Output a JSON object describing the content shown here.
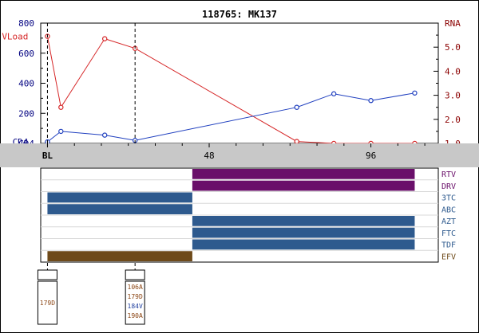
{
  "chart_data": {
    "type": "line",
    "title": "118765: MK137",
    "x_axis": {
      "range": [
        -2,
        116
      ],
      "tick_labels": [
        {
          "x": 0,
          "label": "BL"
        },
        {
          "x": 48,
          "label": "48"
        },
        {
          "x": 96,
          "label": "96"
        }
      ],
      "markers": [
        0,
        26
      ]
    },
    "left_axis": {
      "label": "CD4",
      "range": [
        0,
        800
      ],
      "ticks": [
        0,
        200,
        400,
        600,
        800
      ],
      "tick_labels": [
        "CD4",
        "200",
        "400",
        "600",
        "800"
      ],
      "color": "#000080"
    },
    "right_axis": {
      "label": "RNA",
      "range": [
        1.0,
        6.0
      ],
      "ticks": [
        1.0,
        2.0,
        3.0,
        4.0,
        5.0,
        6.0
      ],
      "tick_labels": [
        "1.0",
        "2.0",
        "3.0",
        "4.0",
        "5.0",
        "RNA"
      ],
      "color": "#8b0000"
    },
    "series": [
      {
        "name": "VLoad",
        "axis": "right",
        "color": "#d62728",
        "x": [
          0,
          4,
          17,
          26,
          74,
          85,
          96,
          109
        ],
        "y": [
          5.45,
          2.5,
          5.35,
          4.95,
          1.08,
          1.0,
          1.0,
          1.0
        ]
      },
      {
        "name": "CD4",
        "axis": "left",
        "color": "#1f3fbf",
        "x": [
          0,
          4,
          17,
          26,
          74,
          85,
          96,
          109
        ],
        "y": [
          10,
          80,
          55,
          20,
          240,
          330,
          285,
          335
        ]
      }
    ],
    "drugs": [
      {
        "name": "RTV",
        "color": "#6a0f6a",
        "label_color": "#6a0f6a",
        "periods": [
          [
            43,
            109
          ]
        ]
      },
      {
        "name": "DRV",
        "color": "#6a0f6a",
        "label_color": "#6a0f6a",
        "periods": [
          [
            43,
            109
          ]
        ]
      },
      {
        "name": "3TC",
        "color": "#2e5a8e",
        "label_color": "#2e5a8e",
        "periods": [
          [
            0,
            43
          ]
        ]
      },
      {
        "name": "ABC",
        "color": "#2e5a8e",
        "label_color": "#2e5a8e",
        "periods": [
          [
            0,
            43
          ]
        ]
      },
      {
        "name": "AZT",
        "color": "#2e5a8e",
        "label_color": "#2e5a8e",
        "periods": [
          [
            43,
            109
          ]
        ]
      },
      {
        "name": "FTC",
        "color": "#2e5a8e",
        "label_color": "#2e5a8e",
        "periods": [
          [
            43,
            109
          ]
        ]
      },
      {
        "name": "TDF",
        "color": "#2e5a8e",
        "label_color": "#2e5a8e",
        "periods": [
          [
            43,
            109
          ]
        ]
      },
      {
        "name": "EFV",
        "color": "#6e4a1a",
        "label_color": "#6e4a1a",
        "periods": [
          [
            0,
            43
          ]
        ]
      }
    ],
    "genotypes": [
      {
        "x": 0,
        "mutations": [
          {
            "text": "179D",
            "color": "#8b4513"
          }
        ]
      },
      {
        "x": 26,
        "mutations": [
          {
            "text": "106A",
            "color": "#8b4513"
          },
          {
            "text": "179D",
            "color": "#8b4513"
          },
          {
            "text": "184V",
            "color": "#1f3f9f"
          },
          {
            "text": "190A",
            "color": "#8b4513"
          }
        ]
      }
    ],
    "grid": false,
    "legend": "inline labels at series start"
  }
}
